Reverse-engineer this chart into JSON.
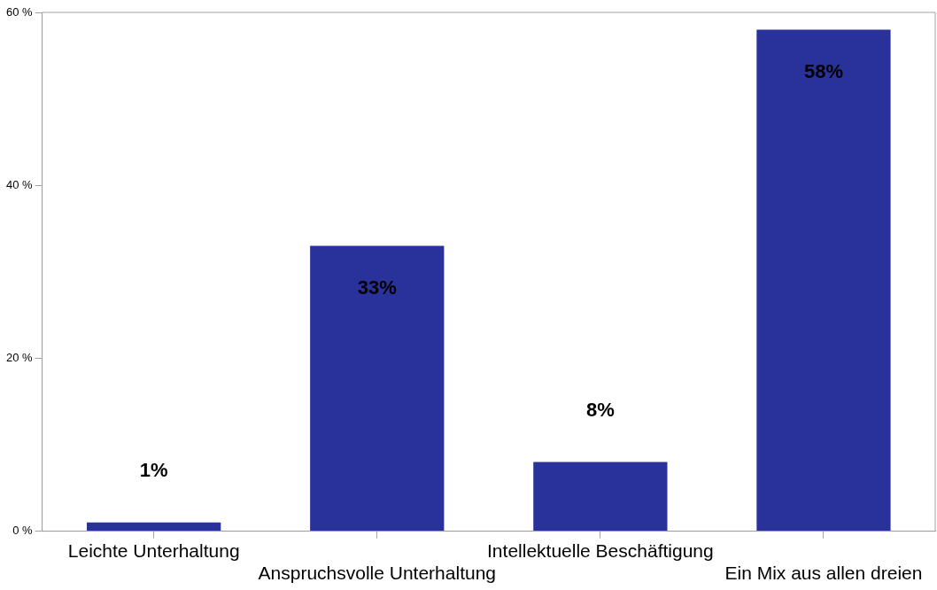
{
  "chart_data": {
    "type": "bar",
    "categories": [
      "Leichte Unterhaltung",
      "Anspruchsvolle Unterhaltung",
      "Intellektuelle Beschäftigung",
      "Ein Mix aus allen dreien"
    ],
    "values": [
      1,
      33,
      8,
      58
    ],
    "value_labels": [
      "1%",
      "33%",
      "8%",
      "58%"
    ],
    "color": "#28329a",
    "ylim": [
      0,
      60
    ],
    "yticks": [
      {
        "value": 0,
        "label": "0 %"
      },
      {
        "value": 20,
        "label": "20 %"
      },
      {
        "value": 40,
        "label": "40 %"
      },
      {
        "value": 60,
        "label": "60 %"
      }
    ],
    "grid": false,
    "legend": false
  }
}
